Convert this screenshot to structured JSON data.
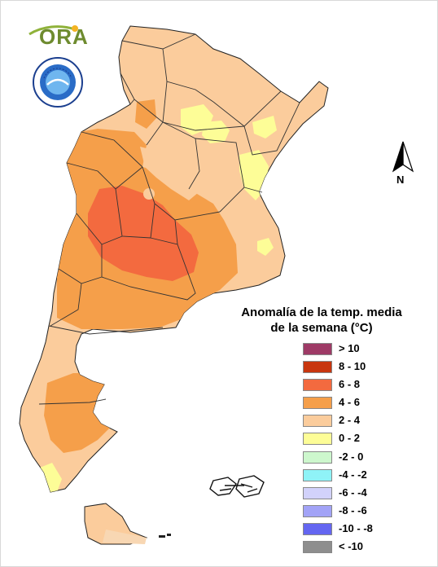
{
  "logos": {
    "ora": "ORA",
    "smn_ring": "SERVICIO METEOROLÓGICO NACIONAL",
    "smn_country": "ARGENTINA",
    "smn_inner": "SMN"
  },
  "north_arrow": {
    "label": "N"
  },
  "legend": {
    "title_line1": "Anomalía de la temp. media",
    "title_line2": "de la semana (°C)",
    "items": [
      {
        "label": "> 10",
        "color": "#9e3a66"
      },
      {
        "label": "8 - 10",
        "color": "#c8360f"
      },
      {
        "label": "6 - 8",
        "color": "#f36a3f"
      },
      {
        "label": "4 - 6",
        "color": "#f59f4a"
      },
      {
        "label": "2 - 4",
        "color": "#fbcc9c"
      },
      {
        "label": "0 - 2",
        "color": "#fdfd97"
      },
      {
        "label": "-2 - 0",
        "color": "#cdf7cd"
      },
      {
        "label": "-4 - -2",
        "color": "#8ff3f7"
      },
      {
        "label": "-6 - -4",
        "color": "#d2d2fb"
      },
      {
        "label": "-8 - -6",
        "color": "#a2a3f7"
      },
      {
        "label": "-10 - -8",
        "color": "#6466f1"
      },
      {
        "label": "< -10",
        "color": "#8e8e8e"
      }
    ]
  }
}
